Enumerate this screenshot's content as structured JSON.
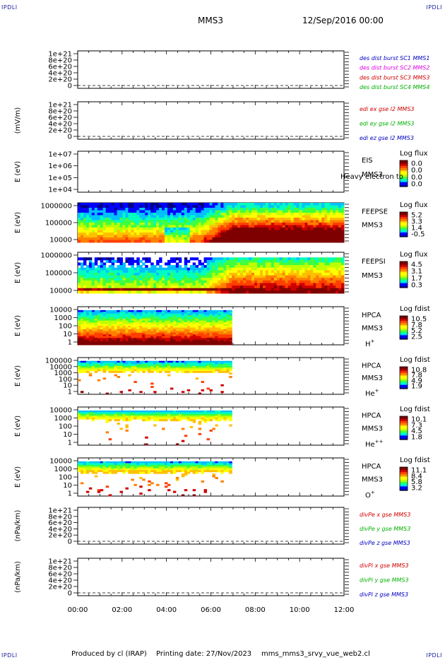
{
  "header": {
    "corner_label": "IPDLI",
    "spacecraft": "MMS3",
    "date_label": "12/Sep/2016 00:00"
  },
  "footer": {
    "produced_by": "Produced by cl (IRAP)",
    "printing_date": "Printing date: 27/Nov/2023",
    "script_name": "mms_mms3_srvy_vue_web2.cl"
  },
  "colors": {
    "spectrogram_scale": [
      "#00007f",
      "#0000ff",
      "#00bfff",
      "#00ffbf",
      "#3fff3f",
      "#bfff00",
      "#ffff00",
      "#ffbf00",
      "#ff7f00",
      "#ff3f00",
      "#cf0000",
      "#7f0000"
    ]
  },
  "chart_data": [
    {
      "type": "line",
      "ylabel": "",
      "yticks": [
        "1e+21",
        "8e+20",
        "6e+20",
        "4e+20",
        "2e+20",
        "0"
      ],
      "ylim": [
        0,
        1e+21
      ],
      "series": [
        {
          "name": "des dist burst SC1 MMS1",
          "color": "#0000c0"
        },
        {
          "name": "des dist burst SC2 MMS2",
          "color": "#e000e0"
        },
        {
          "name": "des dist burst SC3 MMS3",
          "color": "#d00000"
        },
        {
          "name": "des dist burst SC4 MMS4",
          "color": "#00b000"
        }
      ]
    },
    {
      "type": "line",
      "ylabel": "(mV/m)",
      "yticks": [
        "1e+21",
        "8e+20",
        "6e+20",
        "4e+20",
        "2e+20",
        "0"
      ],
      "ylim": [
        0,
        1e+21
      ],
      "series": [
        {
          "name": "edi ex gse l2 MMS3",
          "color": "#d00000"
        },
        {
          "name": "edi ey gse l2 MMS3",
          "color": "#00b000"
        },
        {
          "name": "edi ez gse l2 MMS3",
          "color": "#0000c0"
        }
      ]
    },
    {
      "type": "heatmap",
      "ylabel": "E (eV)",
      "yticks": [
        "1e+07",
        "1e+06",
        "1e+05",
        "1e+04"
      ],
      "log_scale": true,
      "side_labels": [
        "EIS",
        "MMS3"
      ],
      "overlay_text": "Heavy electron to",
      "colorbar_title": "Log flux",
      "colorbar_ticks": [
        "0.0",
        "0.0",
        "0.0",
        "0.0"
      ],
      "data": "empty"
    },
    {
      "type": "heatmap",
      "ylabel": "E (eV)",
      "yticks": [
        "1000000",
        "100000",
        "10000"
      ],
      "log_scale": true,
      "side_labels": [
        "FEEPSE",
        "MMS3"
      ],
      "colorbar_title": "Log flux",
      "colorbar_ticks": [
        "5.2",
        "3.3",
        "1.4",
        "-0.5"
      ]
    },
    {
      "type": "heatmap",
      "ylabel": "E (eV)",
      "yticks": [
        "1000000",
        "100000",
        "10000"
      ],
      "log_scale": true,
      "side_labels": [
        "FEEPSI",
        "MMS3"
      ],
      "colorbar_title": "Log flux",
      "colorbar_ticks": [
        "4.5",
        "3.1",
        "1.7",
        "0.3"
      ]
    },
    {
      "type": "heatmap",
      "ylabel": "E (eV)",
      "yticks": [
        "10000",
        "1000",
        "100",
        "10",
        "1"
      ],
      "log_scale": true,
      "side_labels": [
        "HPCA",
        "MMS3"
      ],
      "species": "H",
      "charge": "+",
      "data_end": "07:00",
      "colorbar_title": "Log fdist",
      "colorbar_ticks": [
        "10.5",
        "7.8",
        "5.2",
        "2.5"
      ]
    },
    {
      "type": "heatmap",
      "ylabel": "E (eV)",
      "yticks": [
        "100000",
        "10000",
        "1000",
        "100",
        "10",
        "1"
      ],
      "log_scale": true,
      "side_labels": [
        "HPCA",
        "MMS3"
      ],
      "species": "He",
      "charge": "+",
      "data_end": "07:00",
      "colorbar_title": "Log fdist",
      "colorbar_ticks": [
        "10.8",
        "7.8",
        "4.9",
        "1.9"
      ]
    },
    {
      "type": "heatmap",
      "ylabel": "E (eV)",
      "yticks": [
        "10000",
        "1000",
        "100",
        "10",
        "1"
      ],
      "log_scale": true,
      "side_labels": [
        "HPCA",
        "MMS3"
      ],
      "species": "He",
      "charge": "++",
      "data_end": "07:00",
      "colorbar_title": "Log fdist",
      "colorbar_ticks": [
        "10.1",
        "7.3",
        "4.5",
        "1.8"
      ]
    },
    {
      "type": "heatmap",
      "ylabel": "E (eV)",
      "yticks": [
        "10000",
        "1000",
        "100",
        "10",
        "1"
      ],
      "log_scale": true,
      "side_labels": [
        "HPCA",
        "MMS3"
      ],
      "species": "O",
      "charge": "+",
      "data_end": "07:00",
      "colorbar_title": "Log fdist",
      "colorbar_ticks": [
        "11.1",
        "8.4",
        "5.8",
        "3.2"
      ]
    },
    {
      "type": "line",
      "ylabel": "(nPa/km)",
      "yticks": [
        "1e+21",
        "8e+20",
        "6e+20",
        "4e+20",
        "2e+20",
        "0"
      ],
      "ylim": [
        0,
        1e+21
      ],
      "series": [
        {
          "name": "divPe x gse MMS3",
          "color": "#d00000"
        },
        {
          "name": "divPe y gse MMS3",
          "color": "#00b000"
        },
        {
          "name": "divPe z gse MMS3",
          "color": "#0000c0"
        }
      ]
    },
    {
      "type": "line",
      "ylabel": "(nPa/km)",
      "yticks": [
        "1e+21",
        "8e+20",
        "6e+20",
        "4e+20",
        "2e+20",
        "0"
      ],
      "ylim": [
        0,
        1e+21
      ],
      "series": [
        {
          "name": "divPi x gse MMS3",
          "color": "#d00000"
        },
        {
          "name": "divPi y gse MMS3",
          "color": "#00b000"
        },
        {
          "name": "divPi z gse MMS3",
          "color": "#0000c0"
        }
      ]
    }
  ],
  "x_axis": {
    "ticks": [
      "00:00",
      "02:00",
      "04:00",
      "06:00",
      "08:00",
      "10:00",
      "12:00"
    ],
    "xlim": [
      "00:00",
      "12:00"
    ]
  }
}
